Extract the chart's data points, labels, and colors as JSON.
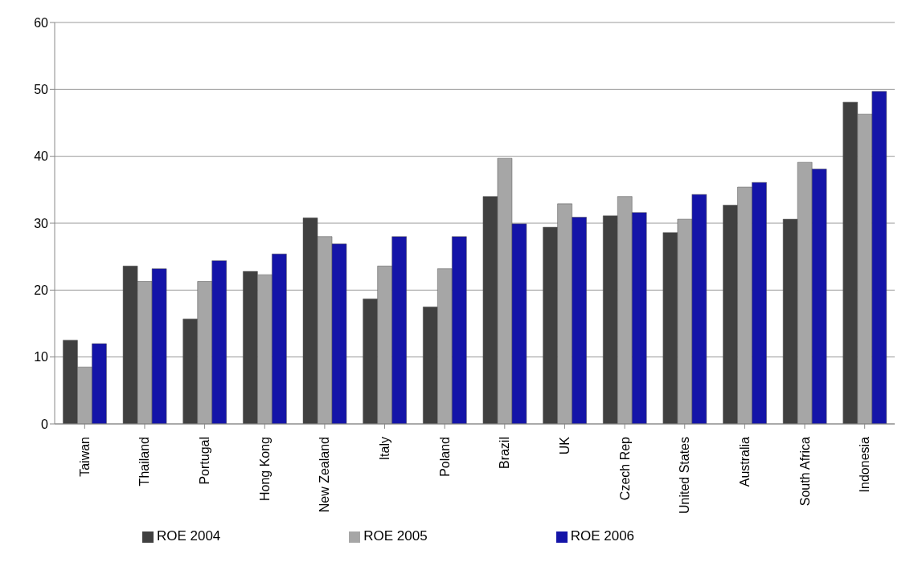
{
  "chart_data": {
    "type": "bar",
    "categories": [
      "Taiwan",
      "Thailand",
      "Portugal",
      "Hong Kong",
      "New Zealand",
      "Italy",
      "Poland",
      "Brazil",
      "UK",
      "Czech Rep",
      "United States",
      "Australia",
      "South Africa",
      "Indonesia"
    ],
    "series": [
      {
        "name": "ROE 2004",
        "color": "#404040",
        "values": [
          12.5,
          23.6,
          15.7,
          22.8,
          30.8,
          18.7,
          17.5,
          34,
          29.4,
          31.1,
          28.6,
          32.7,
          30.6,
          48.1
        ]
      },
      {
        "name": "ROE 2005",
        "color": "#a6a6a6",
        "values": [
          8.5,
          21.3,
          21.3,
          22.3,
          28,
          23.6,
          23.2,
          39.7,
          32.9,
          34,
          30.6,
          35.4,
          39.1,
          46.3
        ]
      },
      {
        "name": "ROE 2006",
        "color": "#1414a8",
        "values": [
          12,
          23.2,
          24.4,
          25.4,
          26.9,
          28,
          28,
          29.9,
          30.9,
          31.6,
          34.3,
          36.1,
          38.1,
          49.7
        ]
      }
    ],
    "ylim": [
      0,
      60
    ],
    "yticks": [
      0,
      10,
      20,
      30,
      40,
      50,
      60
    ],
    "grid": "y",
    "legend": "bottom"
  }
}
